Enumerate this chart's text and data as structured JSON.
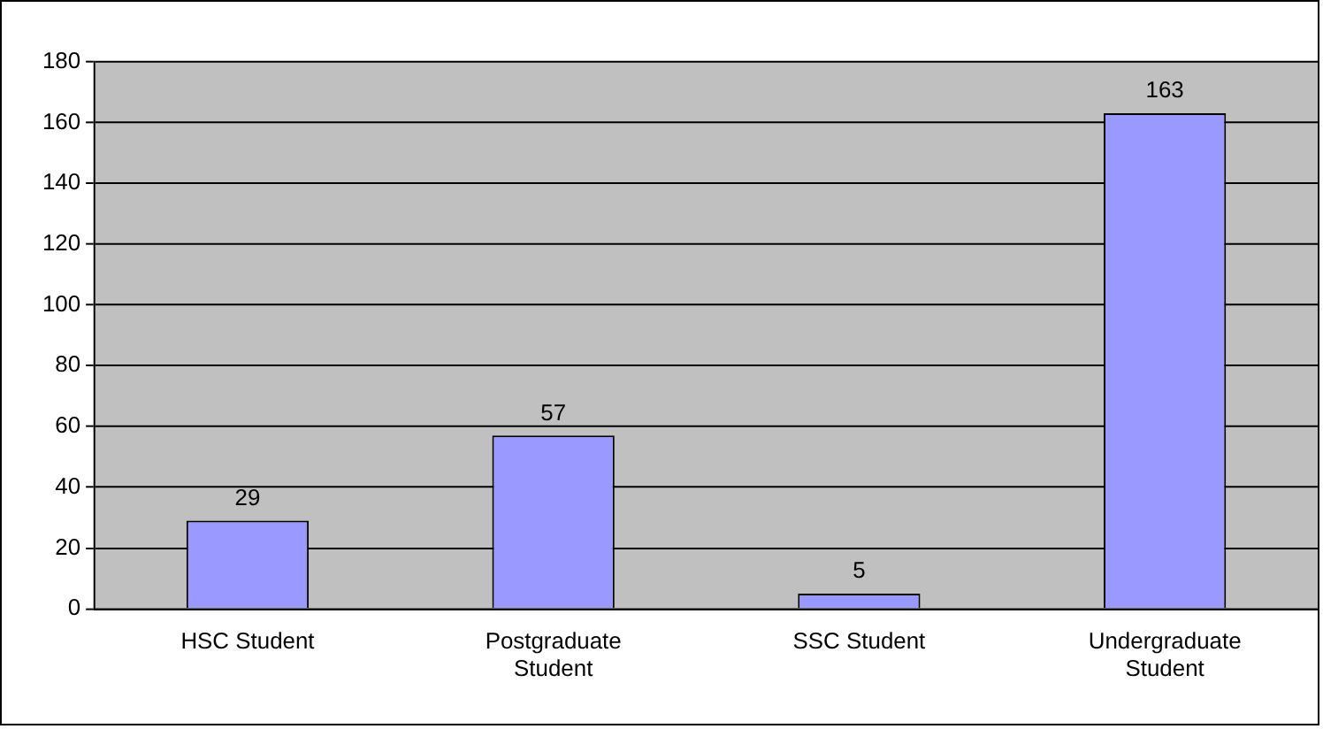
{
  "chart_data": {
    "type": "bar",
    "categories": [
      "HSC Student",
      "Postgraduate Student",
      "SSC Student",
      "Undergraduate Student"
    ],
    "values": [
      29,
      57,
      5,
      163
    ],
    "color": "#9999ff",
    "ylim": [
      0,
      180
    ],
    "yticks": [
      0,
      20,
      40,
      60,
      80,
      100,
      120,
      140,
      160,
      180
    ],
    "grid": "y",
    "data_labels": true,
    "legend": false
  }
}
